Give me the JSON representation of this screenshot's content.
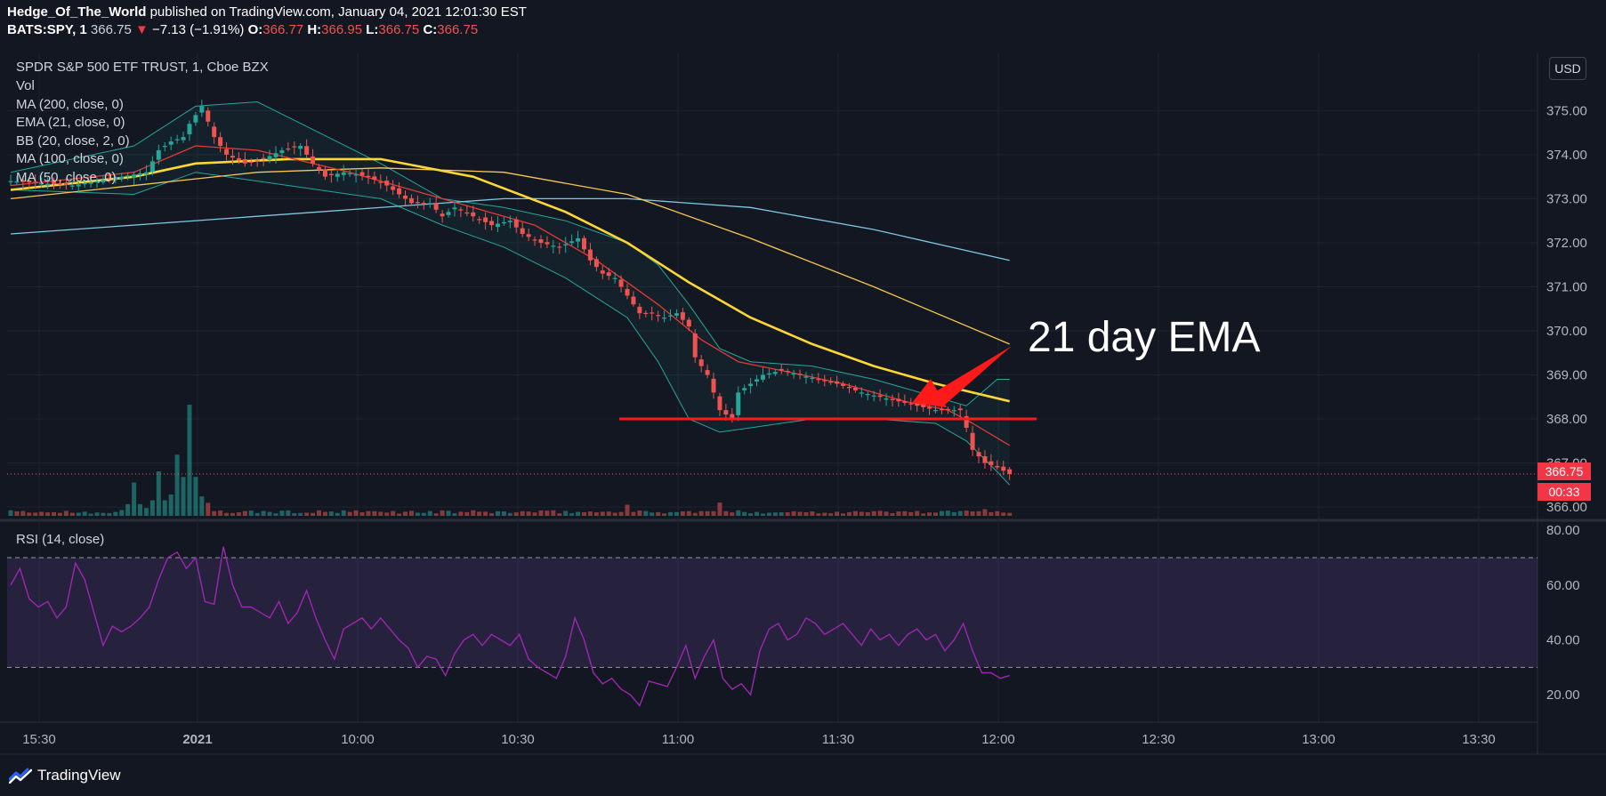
{
  "header": {
    "author": "Hedge_Of_The_World",
    "published": "published on TradingView.com, January 04, 2021 12:01:30 EST",
    "symbol": "BATS:SPY, 1",
    "last": "366.75",
    "change_arrow": "▼",
    "change": "−7.13 (−1.91%)",
    "o_label": "O:",
    "o": "366.77",
    "h_label": "H:",
    "h": "366.95",
    "l_label": "L:",
    "l": "366.75",
    "c_label": "C:",
    "c": "366.75"
  },
  "legend": [
    "SPDR S&P 500 ETF TRUST, 1, Cboe BZX",
    "Vol",
    "MA (200, close, 0)",
    "EMA (21, close, 0)",
    "BB (20, close, 2, 0)",
    "MA (100, close, 0)",
    "MA (50, close, 0)"
  ],
  "rsi_label": "RSI (14, close)",
  "currency_button": "USD",
  "last_price_tag": "366.75",
  "countdown_tag": "00:33",
  "annotation": "21 day EMA",
  "brand": "TradingView",
  "colors": {
    "background": "#131722",
    "up": "#26a69a",
    "down": "#ef5350",
    "ma200": "#7ec8e3",
    "ema21": "#e53935",
    "ma100": "#f9c74f",
    "ma50": "#fdd835",
    "bb": "#26a69a",
    "rsi": "#9c27b0",
    "support_line": "#ff1a1a"
  },
  "chart_data": [
    {
      "type": "candlestick",
      "title": "SPDR S&P 500 ETF TRUST, 1, Cboe BZX",
      "x_ticks": [
        "15:30",
        "2021",
        "10:00",
        "10:30",
        "11:00",
        "11:30",
        "12:00",
        "12:30",
        "13:00",
        "13:30"
      ],
      "y_ticks": [
        "366.00",
        "367.00",
        "368.00",
        "369.00",
        "370.00",
        "371.00",
        "372.00",
        "373.00",
        "374.00",
        "375.00"
      ],
      "ylim": [
        365.8,
        376.3
      ],
      "close_path": [
        [
          0,
          373.4
        ],
        [
          10,
          373.3
        ],
        [
          18,
          373.5
        ],
        [
          22,
          373.6
        ],
        [
          24,
          374.1
        ],
        [
          26,
          374.3
        ],
        [
          28,
          374.4
        ],
        [
          29,
          374.7
        ],
        [
          30,
          374.9
        ],
        [
          31,
          375.1
        ],
        [
          33,
          374.4
        ],
        [
          35,
          374.0
        ],
        [
          38,
          373.8
        ],
        [
          41,
          373.9
        ],
        [
          44,
          374.1
        ],
        [
          47,
          374.2
        ],
        [
          49,
          373.8
        ],
        [
          51,
          373.5
        ],
        [
          54,
          373.6
        ],
        [
          58,
          373.5
        ],
        [
          61,
          373.3
        ],
        [
          63,
          373.1
        ],
        [
          65,
          372.9
        ],
        [
          68,
          372.9
        ],
        [
          70,
          372.6
        ],
        [
          72,
          372.8
        ],
        [
          75,
          372.6
        ],
        [
          78,
          372.4
        ],
        [
          81,
          372.5
        ],
        [
          83,
          372.2
        ],
        [
          86,
          372.0
        ],
        [
          89,
          371.9
        ],
        [
          92,
          372.1
        ],
        [
          94,
          371.6
        ],
        [
          96,
          371.3
        ],
        [
          98,
          371.2
        ],
        [
          100,
          370.8
        ],
        [
          102,
          370.4
        ],
        [
          104,
          370.4
        ],
        [
          106,
          370.3
        ],
        [
          108,
          370.4
        ],
        [
          110,
          370.1
        ],
        [
          111,
          369.4
        ],
        [
          113,
          369.0
        ],
        [
          114,
          368.6
        ],
        [
          115,
          368.2
        ],
        [
          117,
          368.0
        ],
        [
          118,
          368.6
        ],
        [
          120,
          368.8
        ],
        [
          122,
          369.0
        ],
        [
          125,
          369.1
        ],
        [
          128,
          369.0
        ],
        [
          131,
          368.9
        ],
        [
          134,
          368.8
        ],
        [
          136,
          368.7
        ],
        [
          138,
          368.6
        ],
        [
          141,
          368.5
        ],
        [
          144,
          368.4
        ],
        [
          147,
          368.3
        ],
        [
          150,
          368.2
        ],
        [
          152,
          368.2
        ],
        [
          154,
          368.2
        ],
        [
          155,
          367.8
        ],
        [
          156,
          367.3
        ],
        [
          158,
          367.0
        ],
        [
          160,
          366.9
        ],
        [
          162,
          366.75
        ]
      ],
      "high_path": [
        [
          0,
          373.6
        ],
        [
          10,
          373.5
        ],
        [
          20,
          373.8
        ],
        [
          25,
          374.5
        ],
        [
          30,
          375.4
        ],
        [
          40,
          374.2
        ],
        [
          50,
          374.0
        ],
        [
          62,
          373.5
        ],
        [
          70,
          373.0
        ],
        [
          82,
          372.6
        ],
        [
          92,
          372.4
        ],
        [
          100,
          371.0
        ],
        [
          110,
          370.5
        ],
        [
          115,
          368.6
        ],
        [
          120,
          369.2
        ],
        [
          130,
          369.3
        ],
        [
          140,
          368.9
        ],
        [
          150,
          368.4
        ],
        [
          154,
          368.5
        ],
        [
          158,
          367.4
        ],
        [
          162,
          367.3
        ]
      ],
      "low_path": [
        [
          0,
          373.1
        ],
        [
          10,
          373.1
        ],
        [
          20,
          373.3
        ],
        [
          25,
          373.8
        ],
        [
          30,
          374.0
        ],
        [
          40,
          373.5
        ],
        [
          50,
          373.2
        ],
        [
          62,
          372.9
        ],
        [
          70,
          372.4
        ],
        [
          82,
          371.9
        ],
        [
          92,
          371.5
        ],
        [
          100,
          370.0
        ],
        [
          110,
          369.2
        ],
        [
          115,
          367.8
        ],
        [
          120,
          368.5
        ],
        [
          130,
          368.7
        ],
        [
          140,
          368.3
        ],
        [
          150,
          368.0
        ],
        [
          154,
          367.7
        ],
        [
          158,
          366.8
        ],
        [
          162,
          366.7
        ]
      ],
      "series": [
        {
          "name": "MA (200, close, 0)",
          "x": [
            0,
            40,
            80,
            100,
            120,
            140,
            162
          ],
          "values": [
            372.2,
            372.6,
            373.0,
            373.0,
            372.8,
            372.3,
            371.6
          ]
        },
        {
          "name": "MA (100, close, 0)",
          "x": [
            0,
            40,
            60,
            80,
            100,
            120,
            140,
            162
          ],
          "values": [
            373.0,
            373.6,
            373.7,
            373.6,
            373.1,
            372.1,
            371.0,
            369.7
          ]
        },
        {
          "name": "MA (50, close, 0)",
          "x": [
            0,
            20,
            30,
            45,
            60,
            75,
            90,
            100,
            110,
            120,
            130,
            140,
            150,
            162
          ],
          "values": [
            373.2,
            373.5,
            373.8,
            373.9,
            373.9,
            373.5,
            372.7,
            372.0,
            371.1,
            370.3,
            369.7,
            369.2,
            368.8,
            368.4
          ]
        },
        {
          "name": "EMA (21, close, 0)",
          "x": [
            0,
            20,
            30,
            40,
            55,
            70,
            85,
            95,
            105,
            112,
            118,
            125,
            135,
            145,
            152,
            156,
            162
          ],
          "values": [
            373.3,
            373.6,
            374.2,
            374.1,
            373.6,
            373.0,
            372.4,
            371.6,
            370.6,
            369.8,
            369.3,
            369.1,
            368.8,
            368.4,
            368.2,
            367.9,
            367.4
          ]
        }
      ],
      "bollinger": {
        "x": [
          0,
          20,
          30,
          40,
          50,
          60,
          70,
          80,
          90,
          100,
          105,
          110,
          115,
          120,
          130,
          140,
          150,
          155,
          160,
          162
        ],
        "upper": [
          373.6,
          374.2,
          375.1,
          375.2,
          374.5,
          373.8,
          373.0,
          372.8,
          372.5,
          372.0,
          371.5,
          370.6,
          369.6,
          369.3,
          369.2,
          368.9,
          368.5,
          368.3,
          368.9,
          368.9
        ],
        "lower": [
          373.2,
          373.1,
          373.6,
          373.4,
          373.2,
          373.0,
          372.4,
          371.9,
          371.2,
          370.3,
          369.3,
          368.0,
          367.7,
          367.8,
          368.0,
          368.0,
          367.9,
          367.5,
          366.8,
          366.5
        ]
      },
      "support_level": 368.0,
      "last_price": 366.75
    },
    {
      "type": "bar",
      "title": "Vol",
      "peaks": [
        [
          20,
          0.3
        ],
        [
          24,
          0.4
        ],
        [
          27,
          0.55
        ],
        [
          29,
          1.0
        ],
        [
          100,
          0.1
        ],
        [
          115,
          0.12
        ],
        [
          158,
          0.06
        ]
      ]
    },
    {
      "type": "line",
      "title": "RSI (14, close)",
      "y_ticks": [
        "20.00",
        "40.00",
        "60.00",
        "80.00"
      ],
      "ylim": [
        10,
        82
      ],
      "band": [
        30,
        70
      ],
      "values": [
        60,
        66,
        55,
        52,
        54,
        48,
        52,
        68,
        62,
        50,
        38,
        45,
        43,
        45,
        48,
        52,
        62,
        70,
        72,
        66,
        70,
        54,
        53,
        74,
        60,
        52,
        52,
        50,
        48,
        54,
        46,
        50,
        58,
        48,
        40,
        33,
        44,
        46,
        48,
        44,
        48,
        44,
        40,
        37,
        30,
        34,
        33,
        27,
        35,
        40,
        42,
        38,
        42,
        40,
        38,
        42,
        33,
        30,
        28,
        26,
        34,
        48,
        40,
        28,
        24,
        26,
        22,
        20,
        16,
        25,
        24,
        23,
        30,
        38,
        26,
        34,
        40,
        26,
        22,
        24,
        20,
        36,
        44,
        46,
        40,
        42,
        48,
        46,
        42,
        44,
        46,
        42,
        38,
        44,
        40,
        42,
        38,
        42,
        44,
        40,
        42,
        36,
        40,
        46,
        36,
        28,
        28,
        26,
        27
      ]
    }
  ]
}
